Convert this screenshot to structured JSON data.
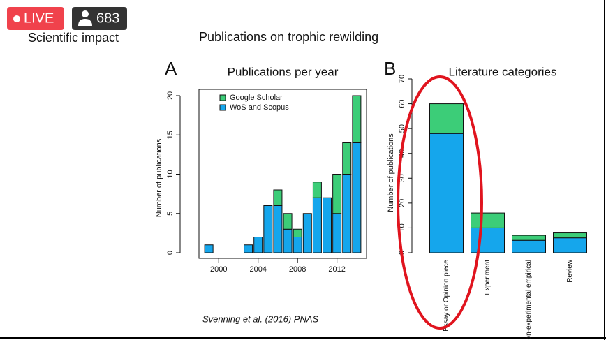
{
  "live_badge": "LIVE",
  "viewers": 683,
  "heading": "Scientific impact",
  "slide_title": "Publications on trophic rewilding",
  "citation": "Svenning et al. (2016) PNAS",
  "chart_data": [
    {
      "type": "bar",
      "panel_label": "A",
      "title": "Publications per year",
      "ylabel": "Number of publications",
      "x": [
        1999,
        2000,
        2001,
        2002,
        2003,
        2004,
        2005,
        2006,
        2007,
        2008,
        2009,
        2010,
        2011,
        2012,
        2013,
        2014
      ],
      "series": [
        {
          "name": "WoS and Scopus",
          "color": "#15a6ec",
          "values": [
            1,
            0,
            0,
            0,
            1,
            2,
            6,
            6,
            3,
            2,
            5,
            7,
            7,
            5,
            10,
            14
          ]
        },
        {
          "name": "Google Scholar",
          "color": "#3ccd78",
          "values": [
            0,
            0,
            0,
            0,
            0,
            0,
            0,
            2,
            2,
            1,
            0,
            2,
            0,
            5,
            4,
            6
          ]
        }
      ],
      "xlim": [
        1998,
        2015
      ],
      "xticks": [
        2000,
        2004,
        2008,
        2012
      ],
      "ylim": [
        0,
        20.8
      ],
      "yticks": [
        0,
        5,
        10,
        15,
        20
      ],
      "legend": "top-left"
    },
    {
      "type": "bar",
      "panel_label": "B",
      "title": "Literature categories",
      "ylabel": "Number of publications",
      "categories": [
        "Essay or Opinion piece",
        "Experiment",
        "Non-experimental empirical",
        "Review"
      ],
      "series": [
        {
          "name": "WoS and Scopus",
          "color": "#15a6ec",
          "values": [
            48,
            10,
            5,
            6
          ]
        },
        {
          "name": "Google Scholar",
          "color": "#3ccd78",
          "values": [
            12,
            6,
            2,
            2
          ]
        }
      ],
      "ylim": [
        0,
        70
      ],
      "yticks": [
        0,
        10,
        20,
        30,
        40,
        50,
        60,
        70
      ]
    }
  ]
}
